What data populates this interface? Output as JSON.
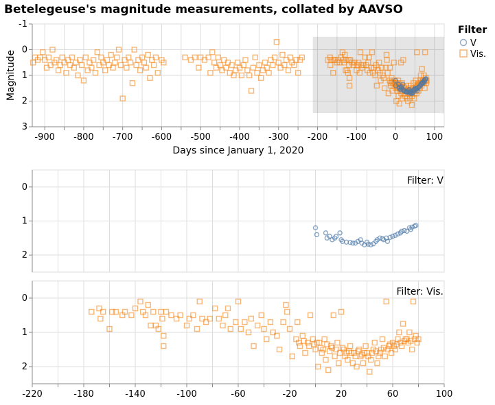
{
  "chart_data": [
    {
      "type": "scatter",
      "title": "Betelegeuse's magnitude measurements, collated by AAVSO",
      "xlabel": "Days since January 1, 2020",
      "ylabel": "Magnitude",
      "xlim": [
        -932,
        125
      ],
      "ylim": [
        -1,
        3
      ],
      "y_reversed": true,
      "x_ticks": [
        -900,
        -800,
        -700,
        -600,
        -500,
        -400,
        -300,
        -200,
        -100,
        0,
        100
      ],
      "y_ticks": [
        -1,
        0,
        1,
        2,
        3
      ],
      "grid": true,
      "brush_selection": {
        "x": [
          -212,
          125
        ],
        "y": [
          -0.5,
          2.47
        ]
      },
      "legend": {
        "title": "Filter",
        "position": "right",
        "entries": [
          {
            "label": "V",
            "shape": "circle",
            "color": "#4c78a8"
          },
          {
            "label": "Vis.",
            "shape": "square",
            "color": "#f58518"
          }
        ]
      }
    },
    {
      "type": "scatter",
      "facet_label": "Filter: V",
      "filter": "V",
      "xlim": [
        -220,
        100
      ],
      "ylim": [
        -0.5,
        2.5
      ],
      "y_reversed": true,
      "y_ticks": [
        0,
        1,
        2
      ],
      "grid": true
    },
    {
      "type": "scatter",
      "facet_label": "Filter: Vis.",
      "filter": "Vis.",
      "xlim": [
        -220,
        100
      ],
      "ylim": [
        -0.5,
        2.5
      ],
      "y_reversed": true,
      "y_ticks": [
        0,
        1,
        2
      ],
      "x_ticks": [
        -220,
        -180,
        -140,
        -100,
        -60,
        -20,
        20,
        60,
        100
      ],
      "grid": true
    }
  ],
  "series": {
    "V": {
      "color": "#4c78a8",
      "shape": "circle",
      "points": [
        [
          0,
          1.2
        ],
        [
          1,
          1.4
        ],
        [
          8,
          1.35
        ],
        [
          9,
          1.5
        ],
        [
          11,
          1.45
        ],
        [
          13,
          1.55
        ],
        [
          15,
          1.5
        ],
        [
          16,
          1.45
        ],
        [
          19,
          1.35
        ],
        [
          20,
          1.55
        ],
        [
          21,
          1.6
        ],
        [
          24,
          1.62
        ],
        [
          27,
          1.63
        ],
        [
          29,
          1.65
        ],
        [
          31,
          1.65
        ],
        [
          33,
          1.6
        ],
        [
          35,
          1.55
        ],
        [
          36,
          1.65
        ],
        [
          38,
          1.7
        ],
        [
          40,
          1.62
        ],
        [
          41,
          1.68
        ],
        [
          43,
          1.7
        ],
        [
          45,
          1.67
        ],
        [
          47,
          1.6
        ],
        [
          48,
          1.55
        ],
        [
          50,
          1.5
        ],
        [
          52,
          1.52
        ],
        [
          53,
          1.55
        ],
        [
          55,
          1.5
        ],
        [
          56,
          1.6
        ],
        [
          58,
          1.48
        ],
        [
          60,
          1.45
        ],
        [
          62,
          1.42
        ],
        [
          64,
          1.38
        ],
        [
          66,
          1.35
        ],
        [
          67,
          1.3
        ],
        [
          69,
          1.28
        ],
        [
          71,
          1.3
        ],
        [
          73,
          1.2
        ],
        [
          74,
          1.25
        ],
        [
          75,
          1.18
        ],
        [
          77,
          1.15
        ],
        [
          78,
          1.13
        ]
      ]
    },
    "Vis.": {
      "color": "#f58518",
      "shape": "square",
      "points": [
        [
          -930,
          0.5
        ],
        [
          -925,
          0.3
        ],
        [
          -918,
          0.4
        ],
        [
          -912,
          0.3
        ],
        [
          -905,
          0.1
        ],
        [
          -900,
          0.4
        ],
        [
          -895,
          0.7
        ],
        [
          -890,
          0.3
        ],
        [
          -885,
          0.6
        ],
        [
          -880,
          0.0
        ],
        [
          -875,
          0.5
        ],
        [
          -870,
          0.4
        ],
        [
          -865,
          0.8
        ],
        [
          -860,
          0.6
        ],
        [
          -855,
          0.3
        ],
        [
          -850,
          0.5
        ],
        [
          -845,
          0.9
        ],
        [
          -840,
          0.4
        ],
        [
          -835,
          0.6
        ],
        [
          -830,
          0.3
        ],
        [
          -825,
          0.7
        ],
        [
          -820,
          0.5
        ],
        [
          -815,
          1.0
        ],
        [
          -810,
          0.4
        ],
        [
          -805,
          0.6
        ],
        [
          -800,
          1.2
        ],
        [
          -795,
          0.3
        ],
        [
          -790,
          0.8
        ],
        [
          -785,
          0.5
        ],
        [
          -780,
          0.7
        ],
        [
          -775,
          0.4
        ],
        [
          -770,
          0.9
        ],
        [
          -765,
          0.1
        ],
        [
          -760,
          0.6
        ],
        [
          -755,
          0.3
        ],
        [
          -750,
          0.5
        ],
        [
          -745,
          0.8
        ],
        [
          -740,
          0.4
        ],
        [
          -735,
          0.6
        ],
        [
          -730,
          0.2
        ],
        [
          -725,
          0.7
        ],
        [
          -720,
          0.5
        ],
        [
          -715,
          0.3
        ],
        [
          -710,
          0.0
        ],
        [
          -705,
          0.6
        ],
        [
          -700,
          1.9
        ],
        [
          -695,
          0.4
        ],
        [
          -690,
          0.7
        ],
        [
          -685,
          0.3
        ],
        [
          -680,
          0.5
        ],
        [
          -675,
          1.3
        ],
        [
          -670,
          0.0
        ],
        [
          -665,
          0.6
        ],
        [
          -660,
          0.4
        ],
        [
          -655,
          0.8
        ],
        [
          -650,
          0.3
        ],
        [
          -645,
          0.5
        ],
        [
          -640,
          0.7
        ],
        [
          -635,
          0.2
        ],
        [
          -630,
          1.1
        ],
        [
          -625,
          0.4
        ],
        [
          -620,
          0.6
        ],
        [
          -615,
          0.3
        ],
        [
          -610,
          0.9
        ],
        [
          -600,
          0.4
        ],
        [
          -595,
          0.5
        ],
        [
          -540,
          0.3
        ],
        [
          -525,
          0.4
        ],
        [
          -515,
          0.3
        ],
        [
          -505,
          0.7
        ],
        [
          -500,
          0.3
        ],
        [
          -490,
          0.4
        ],
        [
          -480,
          0.3
        ],
        [
          -475,
          0.9
        ],
        [
          -470,
          0.1
        ],
        [
          -465,
          0.5
        ],
        [
          -460,
          0.7
        ],
        [
          -455,
          0.3
        ],
        [
          -450,
          0.6
        ],
        [
          -445,
          0.8
        ],
        [
          -440,
          0.4
        ],
        [
          -435,
          0.7
        ],
        [
          -430,
          0.5
        ],
        [
          -425,
          0.9
        ],
        [
          -420,
          0.6
        ],
        [
          -415,
          1.0
        ],
        [
          -410,
          0.8
        ],
        [
          -405,
          0.5
        ],
        [
          -400,
          0.7
        ],
        [
          -395,
          1.0
        ],
        [
          -390,
          0.6
        ],
        [
          -385,
          0.4
        ],
        [
          -380,
          0.8
        ],
        [
          -375,
          1.0
        ],
        [
          -370,
          1.6
        ],
        [
          -365,
          0.7
        ],
        [
          -360,
          0.3
        ],
        [
          -355,
          0.9
        ],
        [
          -350,
          0.6
        ],
        [
          -345,
          1.1
        ],
        [
          -340,
          0.8
        ],
        [
          -335,
          0.5
        ],
        [
          -330,
          0.7
        ],
        [
          -325,
          0.9
        ],
        [
          -320,
          0.4
        ],
        [
          -315,
          0.6
        ],
        [
          -310,
          0.3
        ],
        [
          -305,
          -0.3
        ],
        [
          -300,
          0.5
        ],
        [
          -295,
          0.7
        ],
        [
          -290,
          0.2
        ],
        [
          -285,
          0.6
        ],
        [
          -280,
          0.4
        ],
        [
          -275,
          0.8
        ],
        [
          -270,
          0.3
        ],
        [
          -265,
          0.5
        ],
        [
          -260,
          0.6
        ],
        [
          -255,
          0.4
        ],
        [
          -250,
          0.9
        ],
        [
          -245,
          0.4
        ],
        [
          -240,
          0.3
        ],
        [
          -174,
          0.4
        ],
        [
          -168,
          0.3
        ],
        [
          -167,
          0.6
        ],
        [
          -165,
          0.4
        ],
        [
          -160,
          0.9
        ],
        [
          -158,
          0.4
        ],
        [
          -155,
          0.4
        ],
        [
          -150,
          0.5
        ],
        [
          -148,
          0.4
        ],
        [
          -143,
          0.5
        ],
        [
          -140,
          0.3
        ],
        [
          -136,
          0.1
        ],
        [
          -134,
          0.4
        ],
        [
          -132,
          0.5
        ],
        [
          -130,
          0.2
        ],
        [
          -128,
          0.8
        ],
        [
          -126,
          0.4
        ],
        [
          -124,
          0.8
        ],
        [
          -122,
          0.9
        ],
        [
          -120,
          0.4
        ],
        [
          -119,
          0.6
        ],
        [
          -118,
          1.1
        ],
        [
          -118,
          1.4
        ],
        [
          -116,
          0.4
        ],
        [
          -112,
          0.5
        ],
        [
          -108,
          0.6
        ],
        [
          -105,
          0.5
        ],
        [
          -100,
          0.8
        ],
        [
          -98,
          0.6
        ],
        [
          -95,
          0.5
        ],
        [
          -92,
          0.9
        ],
        [
          -90,
          0.1
        ],
        [
          -88,
          0.6
        ],
        [
          -85,
          0.7
        ],
        [
          -82,
          0.6
        ],
        [
          -78,
          0.3
        ],
        [
          -75,
          0.6
        ],
        [
          -72,
          0.8
        ],
        [
          -70,
          0.5
        ],
        [
          -68,
          0.3
        ],
        [
          -66,
          0.9
        ],
        [
          -62,
          0.7
        ],
        [
          -60,
          0.1
        ],
        [
          -58,
          0.9
        ],
        [
          -55,
          0.7
        ],
        [
          -52,
          1.0
        ],
        [
          -50,
          0.6
        ],
        [
          -48,
          1.4
        ],
        [
          -45,
          0.8
        ],
        [
          -42,
          0.5
        ],
        [
          -40,
          0.9
        ],
        [
          -38,
          1.2
        ],
        [
          -35,
          0.7
        ],
        [
          -33,
          1.0
        ],
        [
          -30,
          1.1
        ],
        [
          -28,
          1.5
        ],
        [
          -25,
          0.7
        ],
        [
          -23,
          0.2
        ],
        [
          -22,
          0.4
        ],
        [
          -20,
          0.9
        ],
        [
          -18,
          1.7
        ],
        [
          -15,
          1.2
        ],
        [
          -14,
          0.7
        ],
        [
          -13,
          1.3
        ],
        [
          -12,
          1.4
        ],
        [
          -10,
          1.1
        ],
        [
          -9,
          1.25
        ],
        [
          -8,
          1.6
        ],
        [
          -6,
          1.3
        ],
        [
          -5,
          1.4
        ],
        [
          -4,
          0.5
        ],
        [
          -2,
          1.2
        ],
        [
          -1,
          1.35
        ],
        [
          0,
          1.5
        ],
        [
          1,
          1.3
        ],
        [
          2,
          2.0
        ],
        [
          3,
          1.3
        ],
        [
          4,
          1.45
        ],
        [
          5,
          1.6
        ],
        [
          6,
          1.5
        ],
        [
          7,
          1.2
        ],
        [
          8,
          1.8
        ],
        [
          9,
          1.35
        ],
        [
          10,
          2.1
        ],
        [
          11,
          1.55
        ],
        [
          12,
          1.4
        ],
        [
          13,
          1.45
        ],
        [
          14,
          0.5
        ],
        [
          15,
          1.7
        ],
        [
          16,
          1.5
        ],
        [
          17,
          1.3
        ],
        [
          18,
          1.9
        ],
        [
          19,
          1.6
        ],
        [
          20,
          0.4
        ],
        [
          21,
          1.45
        ],
        [
          22,
          1.5
        ],
        [
          23,
          1.7
        ],
        [
          24,
          1.6
        ],
        [
          25,
          1.8
        ],
        [
          26,
          1.55
        ],
        [
          27,
          1.4
        ],
        [
          28,
          1.6
        ],
        [
          29,
          1.9
        ],
        [
          30,
          1.6
        ],
        [
          31,
          1.7
        ],
        [
          32,
          2.0
        ],
        [
          33,
          1.55
        ],
        [
          34,
          1.5
        ],
        [
          35,
          1.7
        ],
        [
          36,
          1.65
        ],
        [
          37,
          1.9
        ],
        [
          38,
          1.6
        ],
        [
          39,
          1.4
        ],
        [
          40,
          1.6
        ],
        [
          41,
          1.7
        ],
        [
          42,
          2.15
        ],
        [
          43,
          1.8
        ],
        [
          44,
          1.6
        ],
        [
          45,
          1.5
        ],
        [
          46,
          1.3
        ],
        [
          47,
          1.55
        ],
        [
          48,
          1.9
        ],
        [
          49,
          1.7
        ],
        [
          50,
          1.6
        ],
        [
          51,
          1.5
        ],
        [
          52,
          1.2
        ],
        [
          53,
          1.45
        ],
        [
          54,
          1.7
        ],
        [
          55,
          0.1
        ],
        [
          56,
          1.5
        ],
        [
          57,
          1.4
        ],
        [
          58,
          1.35
        ],
        [
          59,
          1.6
        ],
        [
          60,
          1.3
        ],
        [
          61,
          1.4
        ],
        [
          62,
          1.5
        ],
        [
          63,
          1.35
        ],
        [
          64,
          1.2
        ],
        [
          65,
          1.0
        ],
        [
          66,
          1.3
        ],
        [
          67,
          1.4
        ],
        [
          68,
          0.75
        ],
        [
          69,
          1.25
        ],
        [
          70,
          1.2
        ],
        [
          71,
          1.2
        ],
        [
          72,
          1.3
        ],
        [
          73,
          1.0
        ],
        [
          74,
          1.25
        ],
        [
          75,
          1.5
        ],
        [
          76,
          0.1
        ],
        [
          77,
          1.2
        ],
        [
          78,
          1.1
        ],
        [
          79,
          1.3
        ],
        [
          80,
          1.2
        ]
      ]
    }
  }
}
